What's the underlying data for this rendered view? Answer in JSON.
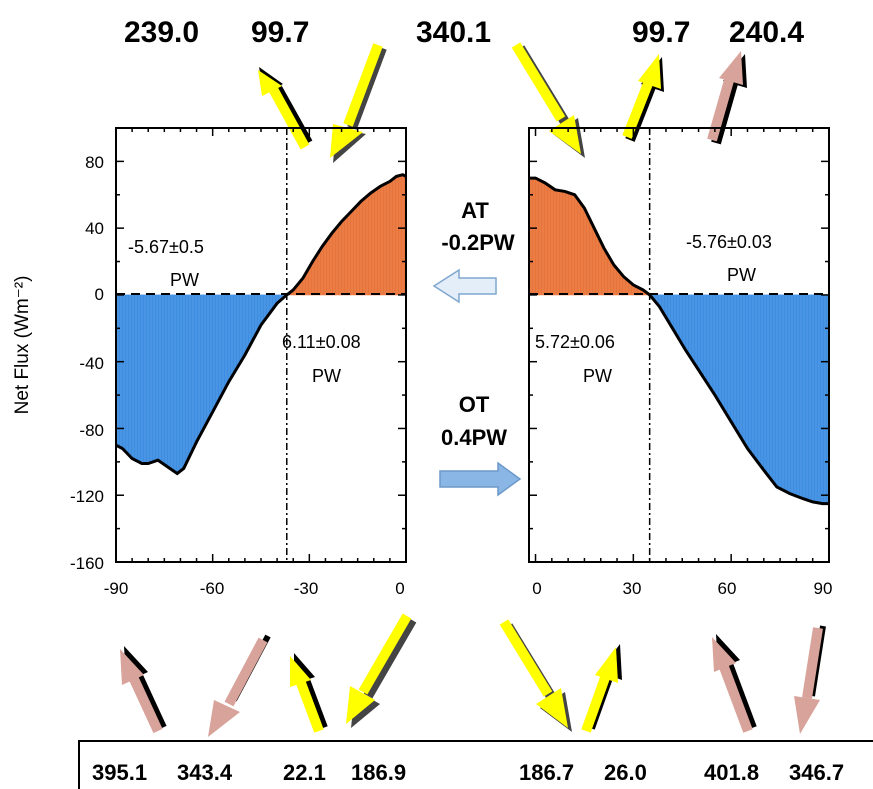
{
  "colors": {
    "northern_fill": "#3d8ee3",
    "warm_fill": "#e8743a",
    "shortwave_arrow": "#ffff00",
    "longwave_arrow": "#d8a39a",
    "transport_arrow": "#8ab6e6"
  },
  "top_values": [
    "239.0",
    "99.7",
    "340.1",
    "99.7",
    "240.4"
  ],
  "bottom_values": [
    "395.1",
    "343.4",
    "22.1",
    "186.9",
    "186.7",
    "26.0",
    "401.8",
    "346.7"
  ],
  "transport": {
    "at_label": "AT",
    "at_value": "-0.2PW",
    "ot_label": "OT",
    "ot_value": "0.4PW"
  },
  "chart_data": [
    {
      "type": "area",
      "title": "",
      "ylabel": "Net Flux (Wm⁻²)",
      "xlabel": "",
      "xlim": [
        -90,
        0
      ],
      "ylim": [
        -160,
        100
      ],
      "x_ticks": [
        "-90",
        "-60",
        "-30",
        "0"
      ],
      "y_ticks": [
        "80",
        "40",
        "0",
        "-40",
        "-80",
        "-120",
        "-160"
      ],
      "x": [
        -90,
        -88,
        -85,
        -82,
        -80,
        -77,
        -74,
        -71,
        -69,
        -65,
        -60,
        -55,
        -50,
        -45,
        -40,
        -37,
        -35,
        -32,
        -29,
        -26,
        -23,
        -20,
        -17,
        -14,
        -11,
        -8,
        -5,
        -3,
        -1,
        0
      ],
      "y": [
        -90,
        -92,
        -98,
        -101,
        -101,
        -99,
        -103,
        -107,
        -104,
        -88,
        -70,
        -52,
        -36,
        -18,
        -5,
        0,
        3,
        10,
        20,
        29,
        37,
        44,
        50,
        56,
        61,
        65,
        68,
        71,
        72,
        71
      ],
      "divider_x": -37,
      "annotations": [
        {
          "text_line1": "-5.67±0.5",
          "text_line2": "PW"
        },
        {
          "text_line1": "6.11±0.08",
          "text_line2": "PW"
        }
      ]
    },
    {
      "type": "area",
      "title": "",
      "xlabel": "",
      "ylabel": "",
      "xlim": [
        -2,
        90
      ],
      "ylim": [
        -160,
        100
      ],
      "x_ticks": [
        "0",
        "30",
        "60",
        "90"
      ],
      "x": [
        -2,
        0,
        3,
        6,
        9,
        12,
        15,
        18,
        21,
        24,
        27,
        30,
        33,
        35,
        38,
        42,
        46,
        50,
        55,
        60,
        65,
        70,
        74,
        78,
        82,
        85,
        88,
        90
      ],
      "y": [
        70,
        70,
        67,
        63,
        62,
        60,
        52,
        40,
        28,
        18,
        11,
        6,
        3,
        0,
        -7,
        -20,
        -33,
        -45,
        -60,
        -76,
        -92,
        -105,
        -115,
        -119,
        -122,
        -124,
        -125,
        -125
      ],
      "divider_x": 35,
      "annotations": [
        {
          "text_line1": "-5.76±0.03",
          "text_line2": "PW"
        },
        {
          "text_line1": "5.72±0.06",
          "text_line2": "PW"
        }
      ]
    }
  ]
}
